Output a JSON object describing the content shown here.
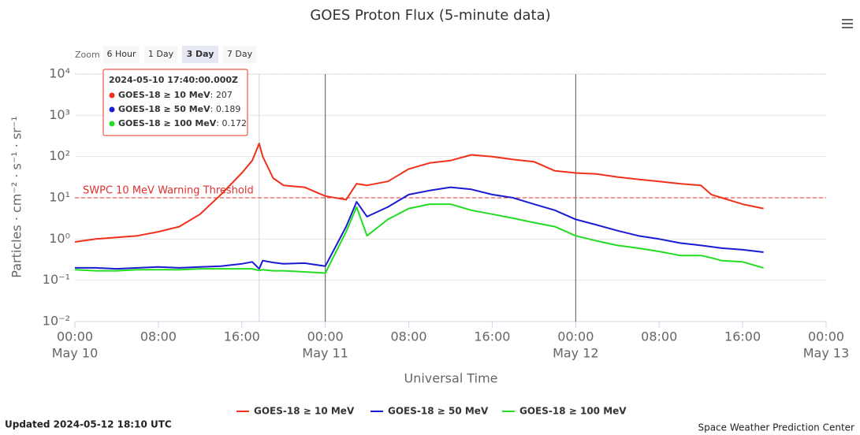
{
  "chart_data": {
    "type": "line",
    "title": "GOES Proton Flux (5-minute data)",
    "y_label": "Particles · cm⁻² · s⁻¹ · sr⁻¹",
    "x_label": "Universal Time",
    "log_y": true,
    "grid": true,
    "zoom": {
      "label": "Zoom",
      "buttons": [
        "6 Hour",
        "1 Day",
        "3 Day",
        "7 Day"
      ],
      "selected": 2
    },
    "x": [
      "May 10 00:00",
      "May 10 02:00",
      "May 10 04:00",
      "May 10 06:00",
      "May 10 08:00",
      "May 10 10:00",
      "May 10 12:00",
      "May 10 14:00",
      "May 10 16:00",
      "May 10 17:00",
      "May 10 17:40",
      "May 10 18:00",
      "May 10 19:00",
      "May 10 20:00",
      "May 10 22:00",
      "May 11 00:00",
      "May 11 02:00",
      "May 11 03:00",
      "May 11 04:00",
      "May 11 06:00",
      "May 11 08:00",
      "May 11 10:00",
      "May 11 12:00",
      "May 11 14:00",
      "May 11 16:00",
      "May 11 18:00",
      "May 11 20:00",
      "May 11 22:00",
      "May 12 00:00",
      "May 12 02:00",
      "May 12 04:00",
      "May 12 06:00",
      "May 12 08:00",
      "May 12 10:00",
      "May 12 12:00",
      "May 12 13:00",
      "May 12 14:00",
      "May 12 16:00",
      "May 12 18:00"
    ],
    "series": [
      {
        "name": "GOES-18 ≥ 10 MeV",
        "color": "#f0301c",
        "values": [
          0.85,
          1.0,
          1.1,
          1.2,
          1.5,
          2.0,
          4,
          12,
          40,
          80,
          207,
          100,
          30,
          20,
          18,
          11,
          9,
          22,
          20,
          25,
          50,
          70,
          80,
          110,
          100,
          85,
          75,
          45,
          40,
          38,
          32,
          28,
          25,
          22,
          20,
          12,
          10,
          7,
          5.5
        ]
      },
      {
        "name": "GOES-18 ≥ 50 MeV",
        "color": "#1a1ad4",
        "values": [
          0.2,
          0.2,
          0.19,
          0.2,
          0.21,
          0.2,
          0.21,
          0.22,
          0.25,
          0.28,
          0.189,
          0.3,
          0.27,
          0.25,
          0.26,
          0.22,
          2,
          8,
          3.5,
          6,
          12,
          15,
          18,
          16,
          12,
          10,
          7,
          5,
          3,
          2.2,
          1.6,
          1.2,
          1.0,
          0.8,
          0.7,
          0.65,
          0.6,
          0.55,
          0.48
        ]
      },
      {
        "name": "GOES-18 ≥ 100 MeV",
        "color": "#22dd22",
        "values": [
          0.18,
          0.17,
          0.17,
          0.18,
          0.18,
          0.18,
          0.19,
          0.19,
          0.19,
          0.19,
          0.172,
          0.18,
          0.17,
          0.17,
          0.16,
          0.15,
          1.5,
          6,
          1.2,
          3,
          5.5,
          7,
          7,
          5,
          4,
          3.2,
          2.5,
          2,
          1.2,
          0.9,
          0.7,
          0.6,
          0.5,
          0.4,
          0.4,
          0.35,
          0.3,
          0.28,
          0.2
        ]
      }
    ],
    "xlim": [
      "May 10 00:00",
      "May 13 00:00"
    ],
    "xticks": [
      {
        "value": "May 10 00:00",
        "label": "00:00",
        "date": "May 10"
      },
      {
        "value": "May 10 08:00",
        "label": "08:00"
      },
      {
        "value": "May 10 16:00",
        "label": "16:00"
      },
      {
        "value": "May 11 00:00",
        "label": "00:00",
        "date": "May 11"
      },
      {
        "value": "May 11 08:00",
        "label": "08:00"
      },
      {
        "value": "May 11 16:00",
        "label": "16:00"
      },
      {
        "value": "May 12 00:00",
        "label": "00:00",
        "date": "May 12"
      },
      {
        "value": "May 12 08:00",
        "label": "08:00"
      },
      {
        "value": "May 12 16:00",
        "label": "16:00"
      },
      {
        "value": "May 13 00:00",
        "label": "00:00",
        "date": "May 13"
      }
    ],
    "xlines": [
      "May 11 00:00",
      "May 12 00:00"
    ],
    "ylim": [
      0.01,
      10000
    ],
    "yticks": [
      {
        "value": 0.01,
        "label": "10⁻²"
      },
      {
        "value": 0.1,
        "label": "10⁻¹"
      },
      {
        "value": 1,
        "label": "10⁰"
      },
      {
        "value": 10,
        "label": "10¹"
      },
      {
        "value": 100,
        "label": "10²"
      },
      {
        "value": 1000,
        "label": "10³"
      },
      {
        "value": 10000,
        "label": "10⁴"
      }
    ],
    "threshold": {
      "value": 10,
      "label": "SWPC 10 MeV Warning Threshold",
      "color": "#e03030"
    },
    "tooltip": {
      "title": "2024-05-10 17:40:00.000Z",
      "items": [
        {
          "name": "GOES-18 ≥ 10 MeV",
          "value": 207
        },
        {
          "name": "GOES-18 ≥ 50 MeV",
          "value": 0.189
        },
        {
          "name": "GOES-18 ≥ 100 MeV",
          "value": 0.172
        }
      ]
    },
    "updated": "Updated 2024-05-12 18:10 UTC",
    "credit": "Space Weather Prediction Center"
  }
}
